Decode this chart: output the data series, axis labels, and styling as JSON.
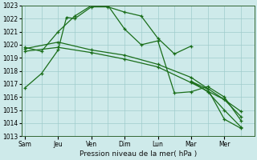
{
  "xlabel": "Pression niveau de la mer( hPa )",
  "ylim": [
    1013,
    1023
  ],
  "yticks": [
    1013,
    1014,
    1015,
    1016,
    1017,
    1018,
    1019,
    1020,
    1021,
    1022,
    1023
  ],
  "xtick_labels": [
    "Sam",
    "Jeu",
    "Ven",
    "Dim",
    "Lun",
    "Mar",
    "Mer"
  ],
  "xtick_positions": [
    0,
    2,
    4,
    6,
    8,
    10,
    12
  ],
  "xlim": [
    -0.2,
    13.8
  ],
  "background_color": "#ceeaea",
  "grid_color": "#a0cccc",
  "line_color": "#1a6e1a",
  "series": [
    {
      "x": [
        0,
        1,
        2,
        2.5,
        3,
        4,
        5,
        6,
        7,
        8,
        9,
        10
      ],
      "y": [
        1016.7,
        1017.8,
        1019.6,
        1022.1,
        1022.0,
        1022.9,
        1022.9,
        1022.5,
        1022.2,
        1020.5,
        1019.3,
        1019.9
      ]
    },
    {
      "x": [
        0,
        1,
        2,
        3,
        4,
        5,
        6,
        7,
        8,
        9,
        10,
        11,
        12,
        13
      ],
      "y": [
        1019.8,
        1019.5,
        1021.0,
        1022.2,
        1023.0,
        1023.0,
        1021.2,
        1020.0,
        1020.3,
        1016.3,
        1016.4,
        1016.8,
        1016.0,
        1014.2
      ]
    },
    {
      "x": [
        0,
        2,
        4,
        6,
        8,
        10,
        12,
        13
      ],
      "y": [
        1019.5,
        1019.8,
        1019.4,
        1018.9,
        1018.3,
        1017.1,
        1015.8,
        1014.5
      ]
    },
    {
      "x": [
        0,
        2,
        4,
        6,
        8,
        10,
        12,
        13
      ],
      "y": [
        1019.7,
        1020.2,
        1019.6,
        1019.2,
        1018.5,
        1017.5,
        1015.8,
        1014.9
      ]
    },
    {
      "x": [
        10,
        11,
        12,
        13
      ],
      "y": [
        1017.2,
        1016.4,
        1015.0,
        1013.7
      ]
    },
    {
      "x": [
        10,
        11,
        12,
        13
      ],
      "y": [
        1017.2,
        1016.6,
        1014.3,
        1013.6
      ]
    }
  ]
}
